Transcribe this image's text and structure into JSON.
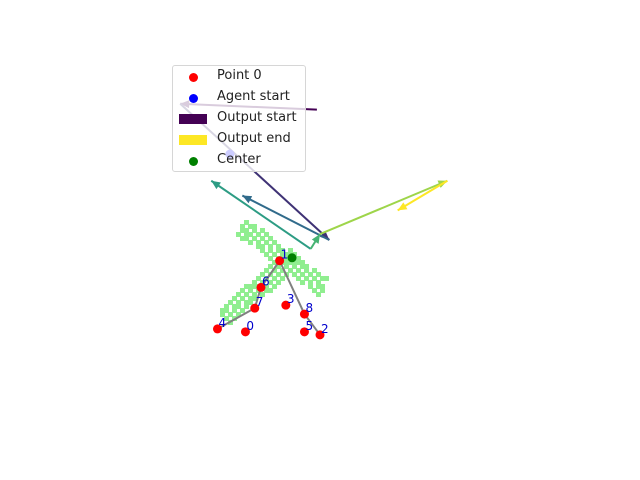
{
  "chart_data": {
    "type": "scatter",
    "title": "",
    "xlabel": "",
    "ylabel": "",
    "axes_visible": false,
    "points": [
      {
        "label": "0",
        "x": -0.75,
        "y": -1.1
      },
      {
        "label": "1",
        "x": -0.2,
        "y": 0.1
      },
      {
        "label": "2",
        "x": 0.45,
        "y": -1.15
      },
      {
        "label": "3",
        "x": -0.1,
        "y": -0.65
      },
      {
        "label": "4",
        "x": -1.2,
        "y": -1.05
      },
      {
        "label": "5",
        "x": 0.2,
        "y": -1.1
      },
      {
        "label": "6",
        "x": -0.5,
        "y": -0.35
      },
      {
        "label": "7",
        "x": -0.6,
        "y": -0.7
      },
      {
        "label": "8",
        "x": 0.2,
        "y": -0.8
      }
    ],
    "center": {
      "x": 0.0,
      "y": 0.15
    },
    "agent_start": {
      "x": -1.0,
      "y": 1.9
    },
    "links": [
      [
        4,
        7
      ],
      [
        7,
        6
      ],
      [
        6,
        1
      ],
      [
        1,
        8
      ],
      [
        8,
        2
      ]
    ],
    "arrows": [
      {
        "x0": 0.4,
        "y0": 2.65,
        "x1": -1.8,
        "y1": 2.75,
        "t": 0.0
      },
      {
        "x0": -1.8,
        "y0": 2.75,
        "x1": 0.6,
        "y1": 0.45,
        "t": 0.15
      },
      {
        "x0": 0.6,
        "y0": 0.45,
        "x1": -0.8,
        "y1": 1.2,
        "t": 0.35
      },
      {
        "x0": 0.3,
        "y0": 0.3,
        "x1": -1.3,
        "y1": 1.45,
        "t": 0.55
      },
      {
        "x0": 0.3,
        "y0": 0.3,
        "x1": 0.45,
        "y1": 0.55,
        "t": 0.65
      },
      {
        "x0": 0.45,
        "y0": 0.55,
        "x1": 2.5,
        "y1": 1.45,
        "t": 0.85
      },
      {
        "x0": 2.5,
        "y0": 1.45,
        "x1": 1.7,
        "y1": 0.95,
        "t": 1.0
      }
    ],
    "xlim": [
      -4.7,
      5.6
    ],
    "ylim": [
      -3.6,
      4.5
    ],
    "legend": {
      "placement": "top-left",
      "items": [
        {
          "label": "Point 0",
          "kind": "dot",
          "color": "#ff0000"
        },
        {
          "label": "Agent start",
          "kind": "dot",
          "color": "#0000ff"
        },
        {
          "label": "Output start",
          "kind": "rect",
          "color": "#440154"
        },
        {
          "label": "Output end",
          "kind": "rect",
          "color": "#fde725"
        },
        {
          "label": "Center",
          "kind": "dot",
          "color": "#008000"
        }
      ]
    },
    "colors": {
      "points": "#ff0000",
      "point_labels": "#0000cc",
      "links": "#808080",
      "center": "#008000",
      "region": "#90ee90",
      "agent": "#0000ff"
    }
  }
}
